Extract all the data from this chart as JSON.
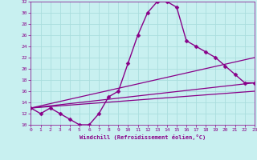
{
  "xlabel": "Windchill (Refroidissement éolien,°C)",
  "xlim": [
    0,
    23
  ],
  "ylim": [
    10,
    32
  ],
  "xticks": [
    0,
    1,
    2,
    3,
    4,
    5,
    6,
    7,
    8,
    9,
    10,
    11,
    12,
    13,
    14,
    15,
    16,
    17,
    18,
    19,
    20,
    21,
    22,
    23
  ],
  "yticks": [
    10,
    12,
    14,
    16,
    18,
    20,
    22,
    24,
    26,
    28,
    30,
    32
  ],
  "background_color": "#c8f0f0",
  "grid_color": "#aadddd",
  "line_color": "#880088",
  "curves": [
    {
      "x": [
        0,
        1,
        2,
        3,
        4,
        5,
        6,
        7,
        8,
        9,
        10,
        11,
        12,
        13,
        14,
        15,
        16,
        17,
        18,
        19,
        20,
        21,
        22,
        23
      ],
      "y": [
        13,
        12,
        13,
        12,
        11,
        10,
        10,
        12,
        15,
        16,
        21,
        26,
        30,
        32,
        32,
        31,
        25,
        24,
        23,
        22,
        20.5,
        19,
        17.5,
        17.5
      ],
      "marker": "D",
      "markersize": 2.5,
      "linewidth": 1.0
    },
    {
      "x": [
        0,
        23
      ],
      "y": [
        13,
        22
      ],
      "marker": null,
      "linewidth": 0.9
    },
    {
      "x": [
        0,
        23
      ],
      "y": [
        13,
        17.5
      ],
      "marker": null,
      "linewidth": 0.9
    },
    {
      "x": [
        0,
        23
      ],
      "y": [
        13,
        16.0
      ],
      "marker": null,
      "linewidth": 0.9
    }
  ]
}
